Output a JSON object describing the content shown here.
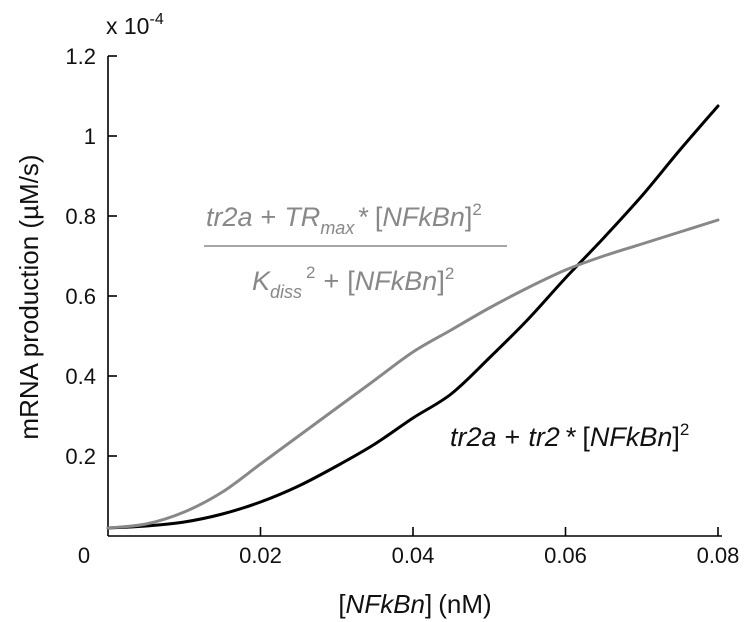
{
  "chart_data": {
    "type": "line",
    "title": "",
    "xlabel": "nM",
    "ylabel": "mRNA production (µM/s)",
    "exponent_label": "x 10",
    "exponent_power": "-4",
    "xlim": [
      0,
      0.08
    ],
    "ylim": [
      0,
      1.2
    ],
    "x_ticks": [
      0,
      0.02,
      0.04,
      0.06,
      0.08
    ],
    "x_tick_labels": [
      "0",
      "0.02",
      "0.04",
      "0.06",
      "0.08"
    ],
    "y_ticks": [
      0.2,
      0.4,
      0.6,
      0.8,
      1,
      1.2
    ],
    "y_tick_labels": [
      "0.2",
      "0.4",
      "0.6",
      "0.8",
      "1",
      "1.2"
    ],
    "series": [
      {
        "name": "tr2a + tr2 * [NFkBn]^2",
        "color": "#000000",
        "x": [
          0,
          0.005,
          0.01,
          0.015,
          0.02,
          0.025,
          0.03,
          0.035,
          0.04,
          0.045,
          0.05,
          0.055,
          0.06,
          0.065,
          0.07,
          0.075,
          0.08
        ],
        "y": [
          0.02,
          0.025,
          0.035,
          0.055,
          0.085,
          0.125,
          0.175,
          0.23,
          0.295,
          0.355,
          0.445,
          0.54,
          0.645,
          0.745,
          0.85,
          0.965,
          1.075
        ]
      },
      {
        "name": "(tr2a + TRmax * [NFkBn]^2) / (Kdiss^2 + [NFkBn]^2)",
        "color": "#888888",
        "x": [
          0,
          0.005,
          0.01,
          0.015,
          0.02,
          0.025,
          0.03,
          0.035,
          0.04,
          0.045,
          0.05,
          0.055,
          0.06,
          0.065,
          0.07,
          0.075,
          0.08
        ],
        "y": [
          0.02,
          0.03,
          0.06,
          0.11,
          0.18,
          0.25,
          0.32,
          0.39,
          0.46,
          0.515,
          0.57,
          0.62,
          0.665,
          0.7,
          0.73,
          0.76,
          0.79
        ]
      }
    ],
    "annotations": {
      "black_formula": {
        "color": "#000000",
        "tr2a": "tr2a",
        "plus": "+",
        "tr2": "tr2",
        "star": "*",
        "lbracket": "[",
        "nfkbn": "NFkBn",
        "rbracket": "]",
        "sq": "2"
      },
      "gray_formula": {
        "color": "#888888",
        "tr2a": "tr2a",
        "plus": "+",
        "tr": "TR",
        "max": "max",
        "star": "*",
        "lbracket": "[",
        "nfkbn": "NFkBn",
        "rbracket": "]",
        "sq": "2",
        "k": "K",
        "diss": "diss"
      }
    },
    "xlabel_parts": {
      "lbracket": "[",
      "nfkbn": "NFkBn",
      "rbracket": "]",
      "unit": "(nM)"
    }
  }
}
